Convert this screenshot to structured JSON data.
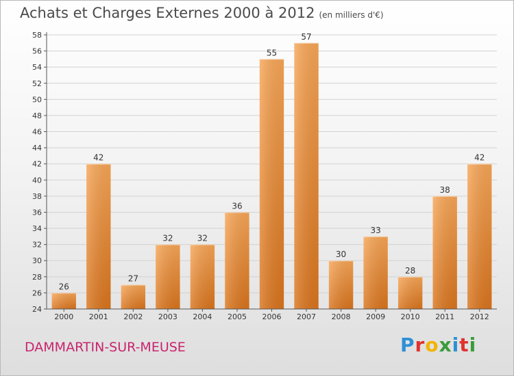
{
  "title": "Achats et Charges Externes 2000 à 2012",
  "subtitle": "(en milliers d'€)",
  "location": "DAMMARTIN-SUR-MEUSE",
  "logo": {
    "text": "Proxiti",
    "letters": [
      {
        "ch": "P",
        "color": "#2e8fd6"
      },
      {
        "ch": "r",
        "color": "#e0322e"
      },
      {
        "ch": "o",
        "color": "#f2b400"
      },
      {
        "ch": "x",
        "color": "#3a9b3a"
      },
      {
        "ch": "i",
        "color": "#2e8fd6"
      },
      {
        "ch": "t",
        "color": "#e0322e"
      },
      {
        "ch": "i",
        "color": "#3a9b3a"
      }
    ]
  },
  "colors": {
    "bar_light": "#f7a657",
    "bar_dark": "#d9741d",
    "axis": "#555555",
    "grid": "#d2d2d2",
    "text": "#333333",
    "location": "#c8246e"
  },
  "chart_data": {
    "type": "bar",
    "title": "Achats et Charges Externes 2000 à 2012",
    "categories": [
      "2000",
      "2001",
      "2002",
      "2003",
      "2004",
      "2005",
      "2006",
      "2007",
      "2008",
      "2009",
      "2010",
      "2011",
      "2012"
    ],
    "values": [
      26,
      42,
      27,
      32,
      32,
      36,
      55,
      57,
      30,
      33,
      28,
      38,
      42
    ],
    "ylim": [
      24,
      58
    ],
    "yticks": [
      24,
      26,
      28,
      30,
      32,
      34,
      36,
      38,
      40,
      42,
      44,
      46,
      48,
      50,
      52,
      54,
      56,
      58
    ],
    "xlabel": "",
    "ylabel": "",
    "grid": true,
    "data_labels": true
  }
}
